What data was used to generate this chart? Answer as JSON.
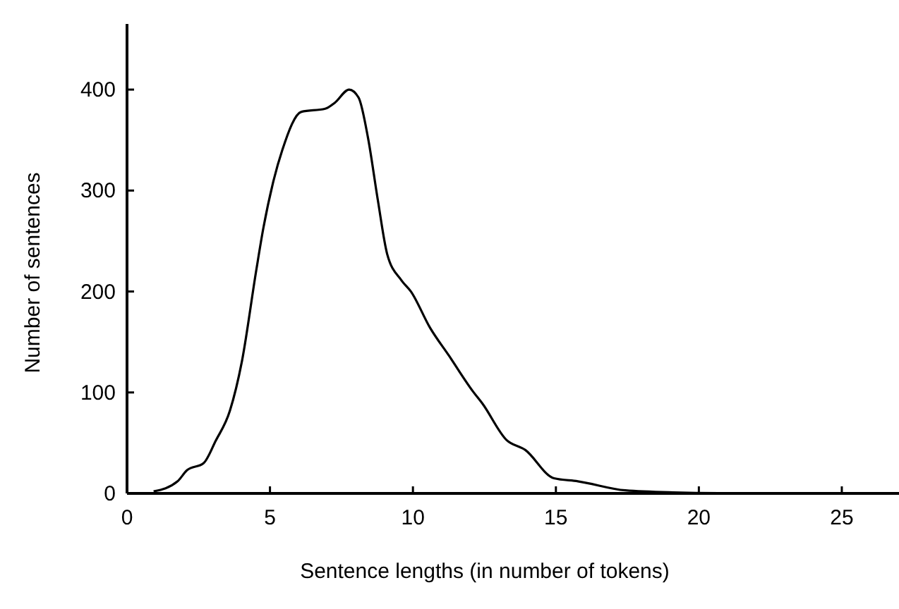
{
  "chart_data": {
    "type": "line",
    "xlabel": "Sentence lengths (in number of tokens)",
    "ylabel": "Number of sentences",
    "xlim": [
      0,
      27
    ],
    "ylim": [
      0,
      465
    ],
    "xticks": [
      0,
      5,
      10,
      15,
      20,
      25
    ],
    "yticks": [
      0,
      100,
      200,
      300,
      400
    ],
    "grid": false,
    "marker": "none",
    "line_style": "solid",
    "series": [
      {
        "color": "#000000",
        "x": [
          0.93,
          1.77,
          2.1,
          2.68,
          3.1,
          3.6,
          4.02,
          4.52,
          4.77,
          5.1,
          5.43,
          6.1,
          6.93,
          7.27,
          7.77,
          8.1,
          8.43,
          8.77,
          9.1,
          9.6,
          9.93,
          10.6,
          11.27,
          12.1,
          12.43,
          13.27,
          13.93,
          14.93,
          15.77,
          17.43,
          19.1,
          22,
          27
        ],
        "values": [
          2,
          12,
          23,
          30,
          52,
          82,
          131,
          221,
          263,
          307,
          340,
          378,
          381,
          387,
          400,
          392,
          352,
          291,
          237,
          211,
          200,
          164,
          136,
          101,
          89,
          53,
          43,
          15,
          12,
          3,
          1,
          0,
          0
        ]
      }
    ]
  }
}
